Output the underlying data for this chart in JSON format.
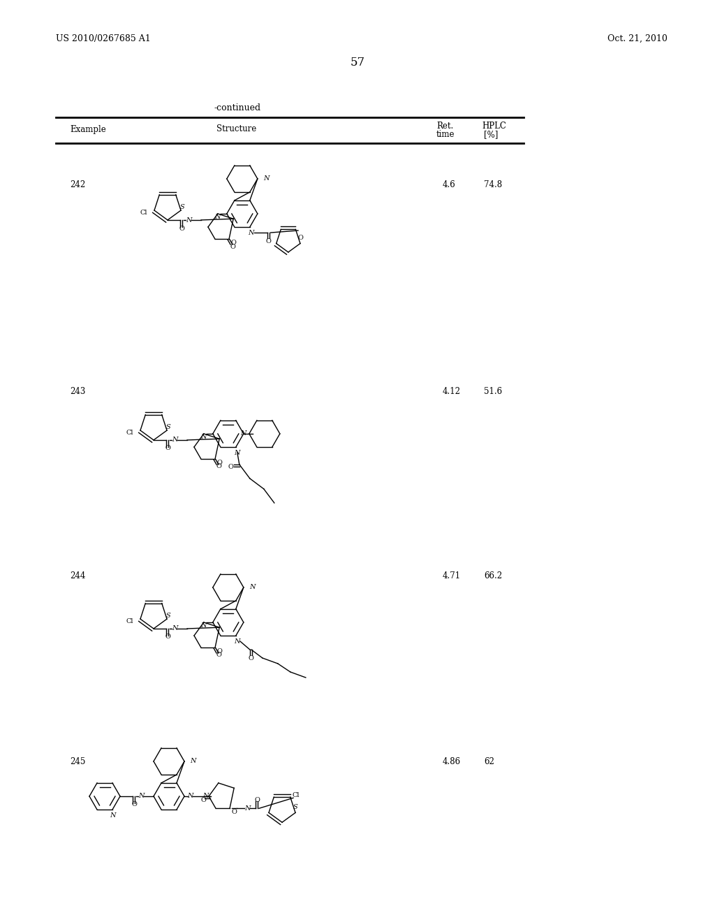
{
  "page_number": "57",
  "patent_number": "US 2010/0267685 A1",
  "patent_date": "Oct. 21, 2010",
  "continued_label": "-continued",
  "table_headers": [
    "Example",
    "Structure",
    "Ret.\ntime",
    "HPLC\n[%]"
  ],
  "rows": [
    {
      "example": "242",
      "ret_time": "4.6",
      "hplc": "74.8"
    },
    {
      "example": "243",
      "ret_time": "4.12",
      "hplc": "51.6"
    },
    {
      "example": "244",
      "ret_time": "4.71",
      "hplc": "66.2"
    },
    {
      "example": "245",
      "ret_time": "4.86",
      "hplc": "62"
    }
  ],
  "background_color": "#ffffff",
  "text_color": "#000000",
  "line_color": "#000000",
  "font_size_header": 9,
  "font_size_body": 9,
  "font_size_page": 10,
  "font_size_patent": 9
}
